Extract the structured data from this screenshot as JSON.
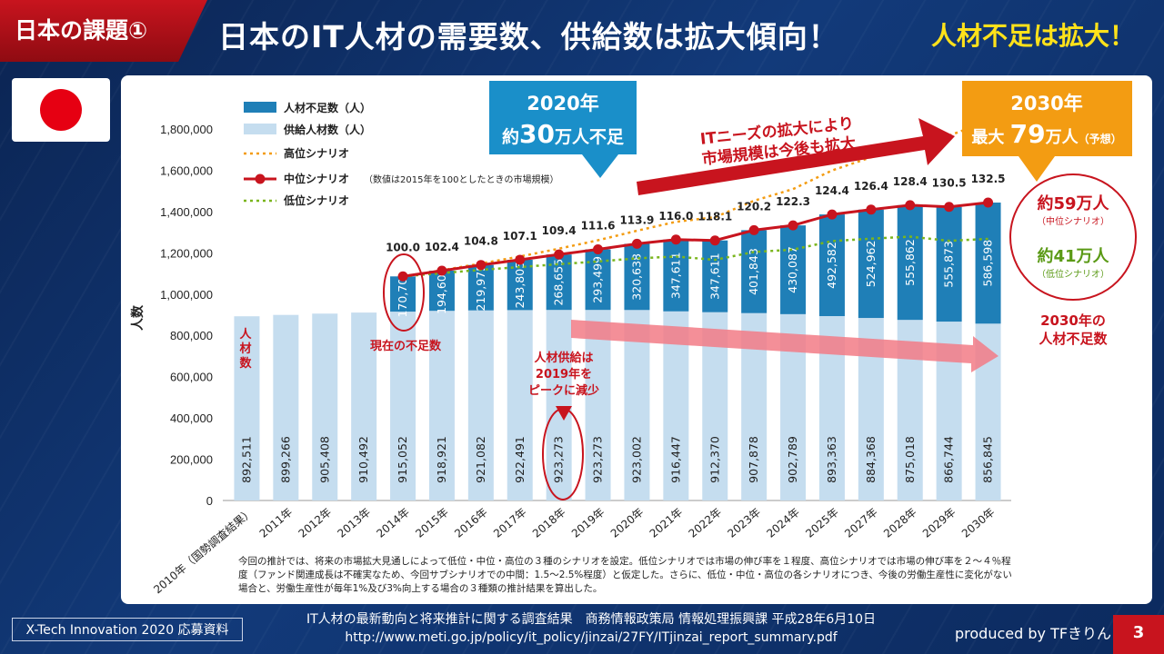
{
  "header": {
    "tag": "日本の課題①",
    "title": "日本のIT人材の需要数、供給数は拡大傾向！",
    "title_right": "人材不足は拡大！"
  },
  "colors": {
    "shortage": "#1f7fb7",
    "supply": "#c5ddef",
    "high": "#f39c12",
    "mid": "#c8141e",
    "low": "#7ab51d",
    "accent_red": "#c8141e",
    "callout_blue": "#1a8fc9",
    "callout_orange": "#f39c12"
  },
  "chart_data": {
    "type": "bar",
    "ylabel": "人数",
    "ylim": [
      0,
      1800000
    ],
    "yticks": [
      "0",
      "200,000",
      "400,000",
      "600,000",
      "800,000",
      "1,000,000",
      "1,200,000",
      "1,400,000",
      "1,600,000",
      "1,800,000"
    ],
    "categories": [
      "2010年（国勢調査結果）",
      "2011年",
      "2012年",
      "2013年",
      "2014年",
      "2015年",
      "2016年",
      "2017年",
      "2018年",
      "2019年",
      "2020年",
      "2021年",
      "2022年",
      "2023年",
      "2024年",
      "2025年",
      "2027年",
      "2028年",
      "2029年",
      "2030年"
    ],
    "series": [
      {
        "name": "供給人材数（人）",
        "values": [
          892511,
          899266,
          905408,
          910492,
          915052,
          918921,
          921082,
          922491,
          923273,
          923273,
          923002,
          916447,
          912370,
          907878,
          902789,
          893363,
          884368,
          875018,
          866744,
          856845
        ],
        "labels": [
          "892,511",
          "899,266",
          "905,408",
          "910,492",
          "915,052",
          "918,921",
          "921,082",
          "922,491",
          "923,273",
          "923,273",
          "923,002",
          "916,447",
          "912,370",
          "907,878",
          "902,789",
          "893,363",
          "884,368",
          "875,018",
          "866,744",
          "856,845"
        ]
      },
      {
        "name": "人材不足数（人）",
        "values": [
          null,
          null,
          null,
          null,
          170700,
          194608,
          219975,
          243805,
          268655,
          293499,
          320638,
          347611,
          347611,
          401843,
          430087,
          492582,
          524962,
          555862,
          555873,
          586598
        ],
        "labels": [
          "",
          "",
          "",
          "",
          "170,700",
          "194,608",
          "219,975",
          "243,805",
          "268,655",
          "293,499",
          "320,638",
          "347,611",
          "347,611",
          "401,843",
          "430,087",
          "492,582",
          "524,962",
          "555,862",
          "555,873",
          "586,598"
        ]
      }
    ],
    "mid_scenario": {
      "name": "中位シナリオ",
      "name_note": "（数値は2015年を100としたときの市場規模）",
      "index_labels": [
        "100.0",
        "102.4",
        "104.8",
        "107.1",
        "109.4",
        "111.6",
        "113.9",
        "116.0",
        "118.1",
        "120.2",
        "122.3",
        "124.4",
        "126.4",
        "128.4",
        "130.5",
        "132.5"
      ]
    },
    "high_scenario": {
      "name": "高位シナリオ"
    },
    "low_scenario": {
      "name": "低位シナリオ"
    }
  },
  "annotations": {
    "callout_2020_line1": "2020年",
    "callout_2020_line2_a": "約",
    "callout_2020_line2_b": "30",
    "callout_2020_line2_c": "万人不足",
    "callout_2030_line1": "2030年",
    "callout_2030_line2_a": "最大 ",
    "callout_2030_line2_b": "79",
    "callout_2030_line2_c": "万人",
    "callout_2030_line2_d": "（予想）",
    "arrow_text_1": "ITニーズの拡大により",
    "arrow_text_2": "市場規模は今後も拡大",
    "mid_amount": "約59万人",
    "mid_note": "（中位シナリオ）",
    "low_amount": "約41万人",
    "low_note": "（低位シナリオ）",
    "shortage_2030_1": "2030年の",
    "shortage_2030_2": "人材不足数",
    "current_shortage": "現在の不足数",
    "supply_peak_1": "人材供給は",
    "supply_peak_2": "2019年を",
    "supply_peak_3": "ピークに減少",
    "bar_label_1": "人",
    "bar_label_2": "材",
    "bar_label_3": "数"
  },
  "footnote": "今回の推計では、将来の市場拡大見通しによって低位・中位・高位の３種のシナリオを設定。低位シナリオでは市場の伸び率を１程度、高位シナリオでは市場の伸び率を２～４％程度（ファンド関連成長は不確実なため、今回サブシナリオでの中間：1.5～2.5%程度）と仮定した。さらに、低位・中位・高位の各シナリオにつき、今後の労働生産性に変化がない場合と、労働生産性が毎年1%及び3%向上する場合の３種類の推計結果を算出した。",
  "footer": {
    "badge": "X-Tech Innovation 2020 応募資料",
    "source_1": "IT人材の最新動向と将来推計に関する調査結果　商務情報政策局 情報処理振興課 平成28年6月10日",
    "source_2": "http://www.meti.go.jp/policy/it_policy/jinzai/27FY/ITjinzai_report_summary.pdf",
    "produced": "produced by TFきりん",
    "page": "3"
  }
}
